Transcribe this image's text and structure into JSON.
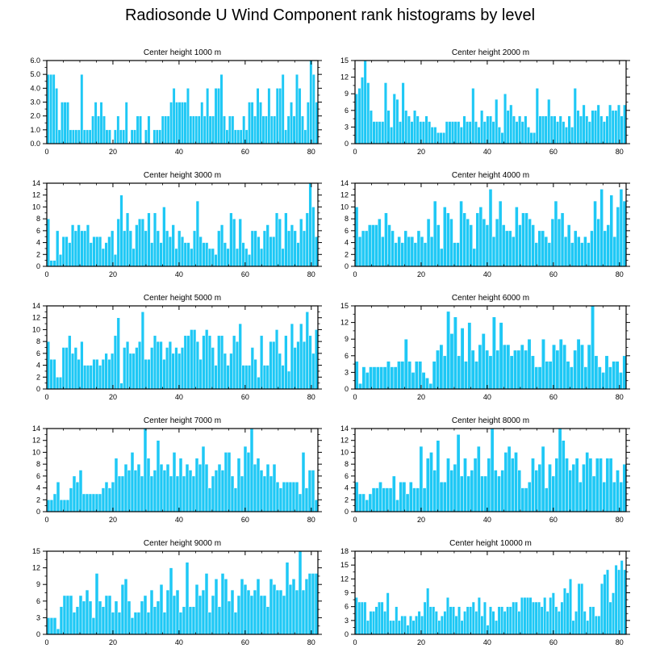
{
  "title": "Radiosonde U Wind Component rank histograms by level",
  "colors": {
    "bar": "#1ec8f5",
    "bar_edge": "#ffffff",
    "axis": "#000000"
  },
  "chart_data": [
    {
      "type": "bar",
      "title": "Center height 1000 m",
      "xlim": [
        0,
        82
      ],
      "ylim": [
        0,
        6
      ],
      "xticks": [
        0,
        20,
        40,
        60,
        80
      ],
      "yticks": [
        0,
        1,
        2,
        3,
        4,
        5,
        6
      ],
      "ytick_labels": [
        "0.0",
        "1.0",
        "2.0",
        "3.0",
        "4.0",
        "5.0",
        "6.0"
      ],
      "values": [
        5,
        5,
        5,
        4,
        1,
        3,
        3,
        3,
        1,
        1,
        1,
        1,
        5,
        1,
        1,
        1,
        2,
        3,
        2,
        3,
        2,
        1,
        1,
        0,
        1,
        2,
        1,
        1,
        3,
        0,
        1,
        1,
        2,
        2,
        0,
        1,
        2,
        0,
        1,
        1,
        1,
        2,
        2,
        2,
        3,
        4,
        3,
        3,
        3,
        3,
        4,
        2,
        2,
        2,
        2,
        3,
        2,
        4,
        2,
        2,
        4,
        4,
        5,
        2,
        1,
        2,
        2,
        1,
        1,
        1,
        2,
        1,
        3,
        3,
        2,
        4,
        3,
        2,
        2,
        4,
        2,
        2,
        4,
        4,
        5,
        1,
        2,
        3,
        2,
        5,
        4,
        2,
        1,
        3,
        6,
        5,
        3
      ]
    },
    {
      "type": "bar",
      "title": "Center height 2000 m",
      "xlim": [
        0,
        82
      ],
      "ylim": [
        0,
        15
      ],
      "xticks": [
        0,
        20,
        40,
        60,
        80
      ],
      "yticks": [
        0,
        3,
        6,
        9,
        12,
        15
      ],
      "ytick_labels": [
        "0",
        "3",
        "6",
        "9",
        "12",
        "15"
      ],
      "values": [
        9,
        10,
        12,
        15,
        11,
        6,
        4,
        4,
        4,
        4,
        11,
        6,
        3,
        9,
        8,
        4,
        11,
        6,
        5,
        4,
        6,
        5,
        4,
        4,
        5,
        4,
        3,
        3,
        2,
        2,
        2,
        4,
        4,
        4,
        4,
        4,
        3,
        5,
        4,
        4,
        10,
        4,
        3,
        6,
        4,
        5,
        5,
        4,
        8,
        3,
        2,
        9,
        6,
        7,
        5,
        4,
        5,
        4,
        5,
        3,
        2,
        2,
        10,
        5,
        5,
        5,
        8,
        5,
        5,
        4,
        5,
        4,
        3,
        5,
        3,
        10,
        6,
        5,
        7,
        5,
        4,
        6,
        6,
        7,
        5,
        4,
        5,
        7,
        6,
        6,
        7,
        5,
        7
      ]
    },
    {
      "type": "bar",
      "title": "Center height 3000 m",
      "xlim": [
        0,
        82
      ],
      "ylim": [
        0,
        14
      ],
      "xticks": [
        0,
        20,
        40,
        60,
        80
      ],
      "yticks": [
        0,
        2,
        4,
        6,
        8,
        10,
        12,
        14
      ],
      "ytick_labels": [
        "0",
        "2",
        "4",
        "6",
        "8",
        "10",
        "12",
        "14"
      ],
      "values": [
        8,
        1,
        1,
        6,
        2,
        5,
        5,
        4,
        7,
        6,
        7,
        6,
        6,
        7,
        4,
        5,
        5,
        5,
        3,
        4,
        5,
        6,
        2,
        8,
        12,
        6,
        9,
        6,
        3,
        7,
        8,
        8,
        6,
        9,
        4,
        9,
        6,
        4,
        10,
        6,
        5,
        7,
        3,
        6,
        5,
        4,
        4,
        3,
        6,
        11,
        5,
        4,
        4,
        3,
        3,
        2,
        6,
        7,
        4,
        3,
        9,
        8,
        3,
        8,
        4,
        3,
        2,
        6,
        6,
        5,
        3,
        6,
        7,
        5,
        5,
        9,
        8,
        3,
        9,
        6,
        7,
        6,
        4,
        8,
        6,
        9,
        14,
        10,
        5
      ]
    },
    {
      "type": "bar",
      "title": "Center height 4000 m",
      "xlim": [
        0,
        82
      ],
      "ylim": [
        0,
        14
      ],
      "xticks": [
        0,
        20,
        40,
        60,
        80
      ],
      "yticks": [
        0,
        2,
        4,
        6,
        8,
        10,
        12,
        14
      ],
      "ytick_labels": [
        "0",
        "2",
        "4",
        "6",
        "8",
        "10",
        "12",
        "14"
      ],
      "values": [
        10,
        5,
        6,
        6,
        7,
        7,
        7,
        8,
        5,
        9,
        7,
        6,
        4,
        5,
        4,
        6,
        5,
        5,
        4,
        6,
        5,
        4,
        8,
        5,
        11,
        7,
        3,
        10,
        9,
        8,
        4,
        4,
        11,
        9,
        8,
        7,
        3,
        9,
        10,
        8,
        7,
        13,
        5,
        8,
        11,
        7,
        6,
        6,
        5,
        10,
        7,
        9,
        9,
        8,
        7,
        4,
        6,
        6,
        5,
        4,
        8,
        11,
        8,
        9,
        5,
        7,
        4,
        6,
        5,
        4,
        5,
        4,
        6,
        11,
        8,
        13,
        6,
        7,
        12,
        5,
        10,
        13,
        11
      ]
    },
    {
      "type": "bar",
      "title": "Center height 5000 m",
      "xlim": [
        0,
        82
      ],
      "ylim": [
        0,
        14
      ],
      "xticks": [
        0,
        20,
        40,
        60,
        80
      ],
      "yticks": [
        0,
        2,
        4,
        6,
        8,
        10,
        12,
        14
      ],
      "ytick_labels": [
        "0",
        "2",
        "4",
        "6",
        "8",
        "10",
        "12",
        "14"
      ],
      "values": [
        8,
        5,
        5,
        2,
        2,
        7,
        7,
        9,
        6,
        7,
        5,
        8,
        4,
        4,
        4,
        5,
        5,
        4,
        5,
        6,
        5,
        6,
        9,
        12,
        1,
        7,
        8,
        6,
        6,
        7,
        8,
        13,
        5,
        5,
        7,
        9,
        8,
        8,
        5,
        7,
        8,
        6,
        7,
        6,
        7,
        9,
        9,
        10,
        10,
        8,
        5,
        9,
        10,
        9,
        7,
        4,
        9,
        9,
        6,
        4,
        6,
        9,
        8,
        11,
        4,
        4,
        4,
        7,
        5,
        2,
        9,
        4,
        4,
        8,
        8,
        10,
        6,
        4,
        9,
        3,
        11,
        7,
        8,
        11,
        8,
        13,
        9,
        6,
        10
      ]
    },
    {
      "type": "bar",
      "title": "Center height 6000 m",
      "xlim": [
        0,
        82
      ],
      "ylim": [
        0,
        15
      ],
      "xticks": [
        0,
        20,
        40,
        60,
        80
      ],
      "yticks": [
        0,
        3,
        6,
        9,
        12,
        15
      ],
      "ytick_labels": [
        "0",
        "3",
        "6",
        "9",
        "12",
        "15"
      ],
      "values": [
        5,
        1,
        4,
        3,
        4,
        4,
        4,
        4,
        4,
        5,
        4,
        4,
        5,
        5,
        9,
        5,
        3,
        5,
        5,
        3,
        2,
        1,
        5,
        7,
        8,
        6,
        14,
        10,
        13,
        6,
        11,
        5,
        12,
        7,
        5,
        8,
        10,
        7,
        6,
        13,
        7,
        12,
        8,
        8,
        6,
        7,
        7,
        8,
        7,
        9,
        6,
        4,
        4,
        9,
        5,
        5,
        8,
        7,
        9,
        8,
        5,
        4,
        7,
        9,
        8,
        4,
        8,
        15,
        6,
        4,
        3,
        6,
        4,
        5,
        5,
        3,
        6
      ]
    },
    {
      "type": "bar",
      "title": "Center height 7000 m",
      "xlim": [
        0,
        82
      ],
      "ylim": [
        0,
        14
      ],
      "xticks": [
        0,
        20,
        40,
        60,
        80
      ],
      "yticks": [
        0,
        2,
        4,
        6,
        8,
        10,
        12,
        14
      ],
      "ytick_labels": [
        "0",
        "2",
        "4",
        "6",
        "8",
        "10",
        "12",
        "14"
      ],
      "values": [
        2,
        2,
        3,
        5,
        2,
        2,
        2,
        4,
        6,
        5,
        7,
        3,
        3,
        3,
        3,
        3,
        3,
        4,
        5,
        4,
        5,
        9,
        6,
        6,
        8,
        7,
        10,
        7,
        8,
        6,
        14,
        9,
        6,
        7,
        12,
        8,
        7,
        8,
        6,
        10,
        6,
        9,
        6,
        8,
        7,
        6,
        9,
        8,
        11,
        8,
        4,
        6,
        7,
        8,
        7,
        10,
        10,
        6,
        4,
        9,
        6,
        11,
        10,
        14,
        8,
        9,
        7,
        6,
        8,
        6,
        8,
        5,
        4,
        5,
        5,
        5,
        5,
        5,
        3,
        10,
        4,
        7,
        7,
        2
      ]
    },
    {
      "type": "bar",
      "title": "Center height 8000 m",
      "xlim": [
        0,
        82
      ],
      "ylim": [
        0,
        14
      ],
      "xticks": [
        0,
        20,
        40,
        60,
        80
      ],
      "yticks": [
        0,
        2,
        4,
        6,
        8,
        10,
        12,
        14
      ],
      "ytick_labels": [
        "0",
        "2",
        "4",
        "6",
        "8",
        "10",
        "12",
        "14"
      ],
      "values": [
        5,
        3,
        3,
        2,
        3,
        4,
        4,
        5,
        4,
        4,
        4,
        6,
        2,
        5,
        5,
        3,
        5,
        4,
        4,
        11,
        4,
        9,
        10,
        7,
        12,
        5,
        5,
        9,
        7,
        8,
        13,
        6,
        9,
        6,
        7,
        9,
        11,
        6,
        6,
        9,
        14,
        7,
        6,
        7,
        10,
        11,
        9,
        10,
        7,
        4,
        4,
        5,
        9,
        7,
        8,
        11,
        4,
        8,
        6,
        9,
        14,
        12,
        9,
        7,
        8,
        9,
        5,
        8,
        10,
        9,
        6,
        9,
        9,
        5,
        9,
        9,
        5,
        7,
        5,
        8
      ]
    },
    {
      "type": "bar",
      "title": "Center height 9000 m",
      "xlim": [
        0,
        82
      ],
      "ylim": [
        0,
        15
      ],
      "xticks": [
        0,
        20,
        40,
        60,
        80
      ],
      "yticks": [
        0,
        3,
        6,
        9,
        12,
        15
      ],
      "ytick_labels": [
        "0",
        "3",
        "6",
        "9",
        "12",
        "15"
      ],
      "values": [
        3,
        3,
        3,
        1,
        5,
        7,
        7,
        7,
        4,
        5,
        7,
        6,
        8,
        6,
        3,
        11,
        6,
        5,
        7,
        7,
        4,
        6,
        4,
        9,
        10,
        6,
        3,
        4,
        4,
        6,
        7,
        4,
        8,
        5,
        6,
        9,
        4,
        8,
        12,
        7,
        8,
        4,
        5,
        13,
        5,
        5,
        9,
        7,
        8,
        11,
        4,
        7,
        10,
        5,
        11,
        10,
        6,
        8,
        4,
        7,
        10,
        9,
        8,
        7,
        8,
        10,
        7,
        7,
        5,
        10,
        9,
        8,
        8,
        7,
        13,
        9,
        10,
        8,
        15,
        8,
        10,
        11,
        11,
        11
      ]
    },
    {
      "type": "bar",
      "title": "Center height 10000 m",
      "xlim": [
        0,
        82
      ],
      "ylim": [
        0,
        18
      ],
      "xticks": [
        0,
        20,
        40,
        60,
        80
      ],
      "yticks": [
        0,
        3,
        6,
        9,
        12,
        15,
        18
      ],
      "ytick_labels": [
        "0",
        "3",
        "6",
        "9",
        "12",
        "15",
        "18"
      ],
      "values": [
        8,
        7,
        7,
        7,
        3,
        5,
        5,
        6,
        7,
        7,
        5,
        9,
        3,
        3,
        6,
        3,
        4,
        4,
        2,
        4,
        3,
        4,
        5,
        4,
        7,
        10,
        6,
        6,
        5,
        3,
        4,
        5,
        8,
        6,
        6,
        4,
        6,
        3,
        5,
        6,
        6,
        7,
        5,
        8,
        4,
        7,
        2,
        6,
        5,
        3,
        6,
        6,
        5,
        6,
        6,
        7,
        7,
        5,
        8,
        8,
        8,
        8,
        7,
        7,
        7,
        6,
        8,
        5,
        8,
        9,
        6,
        5,
        7,
        10,
        9,
        12,
        3,
        5,
        11,
        11,
        5,
        3,
        6,
        6,
        4,
        4,
        11,
        13,
        14,
        7,
        9,
        15,
        14,
        16,
        14
      ]
    }
  ]
}
